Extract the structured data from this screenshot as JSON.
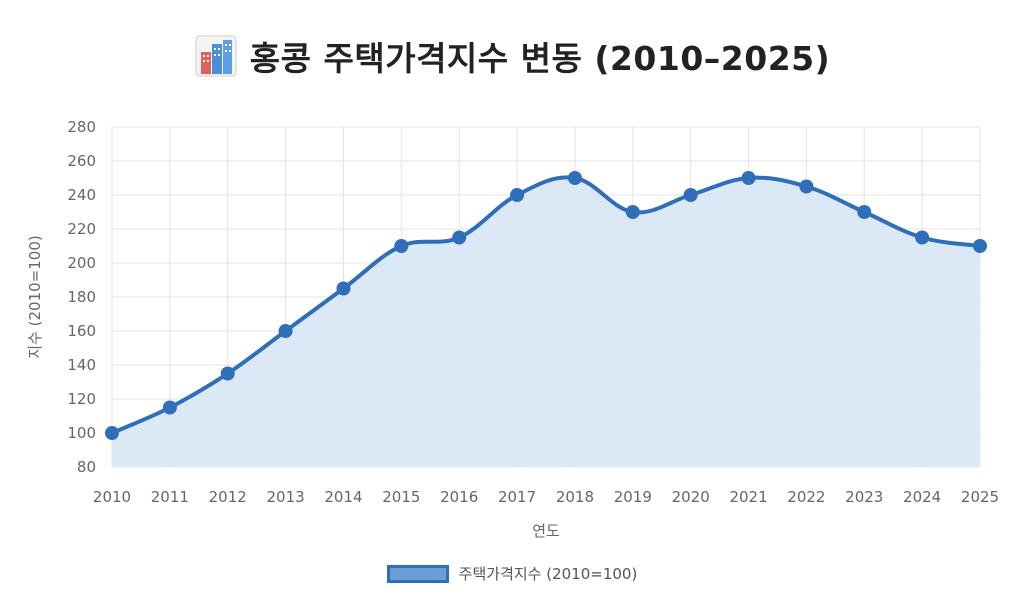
{
  "header": {
    "title": "홍콩 주택가격지수 변동 (2010–2025)",
    "icon": "city-buildings-icon"
  },
  "chart_data": {
    "type": "area",
    "title": "홍콩 주택가격지수 변동 (2010–2025)",
    "xlabel": "연도",
    "ylabel": "지수 (2010=100)",
    "x": [
      "2010",
      "2011",
      "2012",
      "2013",
      "2014",
      "2015",
      "2016",
      "2017",
      "2018",
      "2019",
      "2020",
      "2021",
      "2022",
      "2023",
      "2024",
      "2025"
    ],
    "series": [
      {
        "name": "주택가격지수 (2010=100)",
        "values": [
          100,
          115,
          135,
          160,
          185,
          210,
          215,
          240,
          250,
          230,
          240,
          250,
          245,
          230,
          215,
          210
        ]
      }
    ],
    "ylim": [
      80,
      280
    ],
    "yticks": [
      80,
      100,
      120,
      140,
      160,
      180,
      200,
      220,
      240,
      260,
      280
    ],
    "grid": true,
    "legend_position": "bottom",
    "colors": {
      "line": "#2f6fba",
      "fill": "#d9e8f7",
      "grid": "#e3e3e3"
    }
  },
  "legend": {
    "label": "주택가격지수 (2010=100)"
  }
}
